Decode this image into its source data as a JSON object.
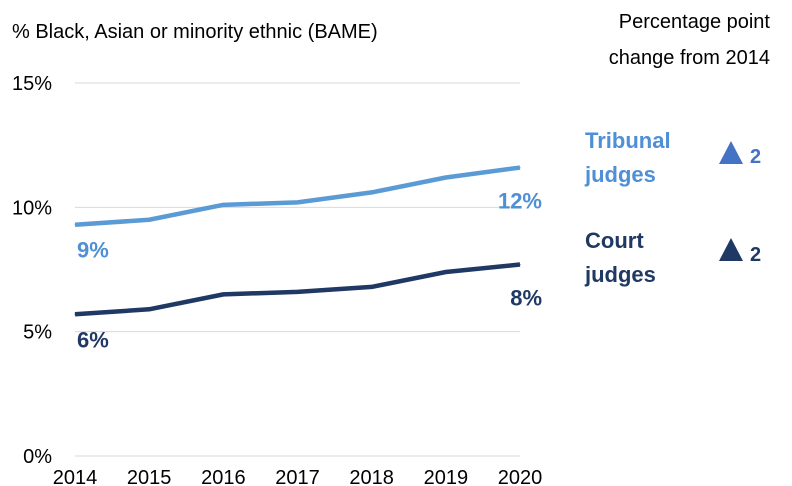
{
  "chart_data": {
    "type": "line",
    "ylabel": "% Black, Asian or minority ethnic (BAME)",
    "x": [
      "2014",
      "2015",
      "2016",
      "2017",
      "2018",
      "2019",
      "2020"
    ],
    "ylim": [
      0,
      15
    ],
    "yticks": [
      "0%",
      "5%",
      "10%",
      "15%"
    ],
    "yticks_values": [
      0,
      5,
      10,
      15
    ],
    "grid": true,
    "series": [
      {
        "name": "Tribunal judges",
        "values": [
          9.3,
          9.5,
          10.1,
          10.2,
          10.6,
          11.2,
          11.6
        ],
        "color": "#5b9bd5",
        "start_label": "9%",
        "end_label": "12%",
        "change": "2",
        "change_icon": "triangle-up-icon",
        "change_color": "#4472c4"
      },
      {
        "name": "Court judges",
        "values": [
          5.7,
          5.9,
          6.5,
          6.6,
          6.8,
          7.4,
          7.7
        ],
        "color": "#1f3864",
        "start_label": "6%",
        "end_label": "8%",
        "change": "2",
        "change_icon": "triangle-up-icon",
        "change_color": "#1f3864"
      }
    ],
    "change_header_line1": "Percentage point",
    "change_header_line2": "change from 2014",
    "legend_lines": [
      [
        "Tribunal",
        "judges"
      ],
      [
        "Court",
        "judges"
      ]
    ]
  }
}
